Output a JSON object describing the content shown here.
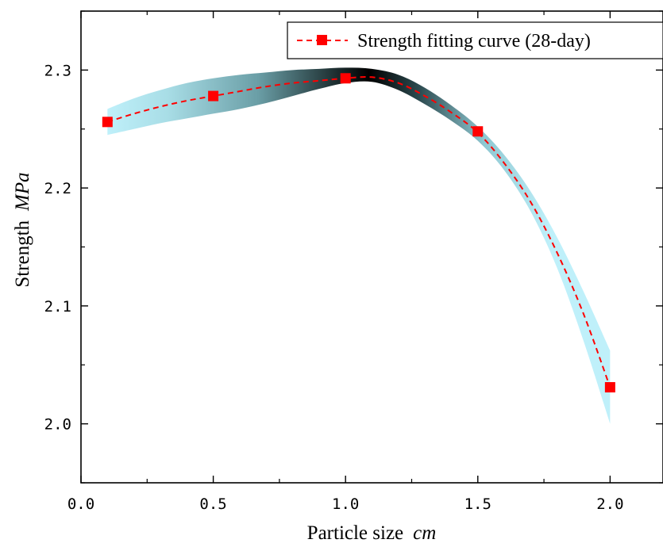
{
  "chart_data": {
    "type": "line",
    "title": "",
    "xlabel": {
      "text": "Particle size",
      "unit": "cm"
    },
    "ylabel": {
      "text": "Strength",
      "unit": "MPa"
    },
    "xlim": [
      0.0,
      2.2
    ],
    "ylim": [
      1.95,
      2.35
    ],
    "xticks": [
      0.0,
      0.5,
      1.0,
      1.5,
      2.0
    ],
    "xtick_labels": [
      "0.0",
      "0.5",
      "1.0",
      "1.5",
      "2.0"
    ],
    "yticks": [
      2.0,
      2.1,
      2.2,
      2.3
    ],
    "ytick_labels": [
      "2.0",
      "2.1",
      "2.2",
      "2.3"
    ],
    "grid": false,
    "legend": {
      "position": "top-right",
      "entries": [
        "Strength fitting curve (28-day)"
      ]
    },
    "series": [
      {
        "name": "Strength fitting curve (28-day)",
        "style": "dashed-line-square-markers",
        "color": "#ff0000",
        "x": [
          0.1,
          0.5,
          1.0,
          1.5,
          2.0
        ],
        "y": [
          2.256,
          2.278,
          2.293,
          2.248,
          2.031
        ]
      }
    ],
    "confidence_band": {
      "x": [
        0.1,
        0.2,
        0.3,
        0.4,
        0.5,
        0.6,
        0.7,
        0.8,
        0.9,
        1.0,
        1.1,
        1.2,
        1.3,
        1.4,
        1.5,
        1.6,
        1.7,
        1.8,
        1.9,
        2.0
      ],
      "upper": [
        2.267,
        2.276,
        2.283,
        2.289,
        2.293,
        2.296,
        2.298,
        2.3,
        2.301,
        2.302,
        2.301,
        2.296,
        2.285,
        2.27,
        2.252,
        2.228,
        2.197,
        2.158,
        2.112,
        2.062
      ],
      "lower": [
        2.245,
        2.25,
        2.255,
        2.259,
        2.263,
        2.267,
        2.272,
        2.278,
        2.284,
        2.289,
        2.29,
        2.283,
        2.271,
        2.257,
        2.24,
        2.215,
        2.18,
        2.132,
        2.07,
        2.0
      ],
      "colors": {
        "edge": "#bff0fa",
        "center": "#000000"
      }
    },
    "fit_curve": {
      "x": [
        0.1,
        0.2,
        0.3,
        0.4,
        0.5,
        0.6,
        0.7,
        0.8,
        0.9,
        1.0,
        1.1,
        1.2,
        1.3,
        1.4,
        1.5,
        1.6,
        1.7,
        1.8,
        1.9,
        2.0
      ],
      "y": [
        2.256,
        2.263,
        2.269,
        2.274,
        2.278,
        2.282,
        2.286,
        2.289,
        2.291,
        2.293,
        2.294,
        2.289,
        2.278,
        2.264,
        2.247,
        2.221,
        2.188,
        2.145,
        2.093,
        2.031
      ]
    }
  }
}
